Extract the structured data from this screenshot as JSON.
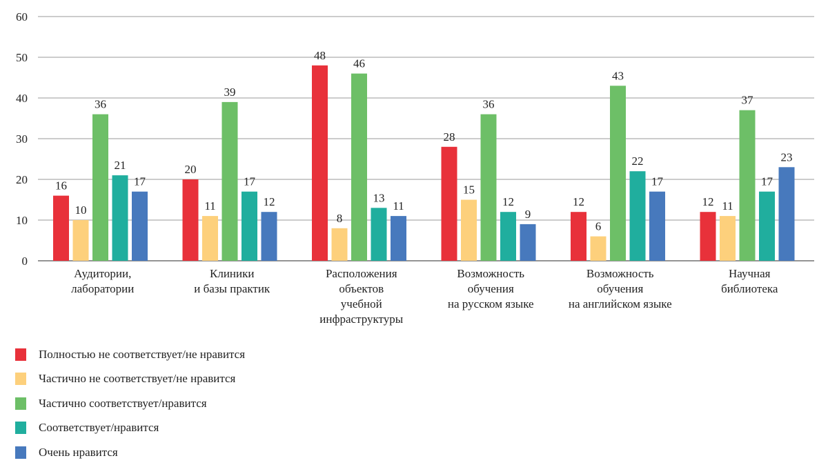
{
  "chart_data": {
    "type": "bar",
    "title": "",
    "xlabel": "",
    "ylabel": "",
    "ylim": [
      0,
      60
    ],
    "yticks": [
      0,
      10,
      20,
      30,
      40,
      50,
      60
    ],
    "grid": true,
    "legend_position": "bottom-left",
    "categories": [
      [
        "Аудитории,",
        "лаборатории"
      ],
      [
        "Клиники",
        "и базы практик"
      ],
      [
        "Расположения",
        "объектов",
        "учебной",
        "инфраструктуры"
      ],
      [
        "Возможность",
        "обучения",
        "на русском языке"
      ],
      [
        "Возможность",
        "обучения",
        "на английском языке"
      ],
      [
        "Научная",
        "библиотека"
      ]
    ],
    "series": [
      {
        "name": "Полностью не соответствует/не нравится",
        "color": "#e8313a",
        "values": [
          16,
          20,
          48,
          28,
          12,
          12
        ]
      },
      {
        "name": "Частично не соответствует/не нравится",
        "color": "#fdd07c",
        "values": [
          10,
          11,
          8,
          15,
          6,
          11
        ]
      },
      {
        "name": "Частично соответствует/нравится",
        "color": "#6dbf67",
        "values": [
          36,
          39,
          46,
          36,
          43,
          37
        ]
      },
      {
        "name": "Соответствует/нравится",
        "color": "#20ae9e",
        "values": [
          21,
          17,
          13,
          12,
          22,
          17
        ]
      },
      {
        "name": "Очень нравится",
        "color": "#4779bd",
        "values": [
          17,
          12,
          11,
          9,
          17,
          23
        ]
      }
    ]
  }
}
